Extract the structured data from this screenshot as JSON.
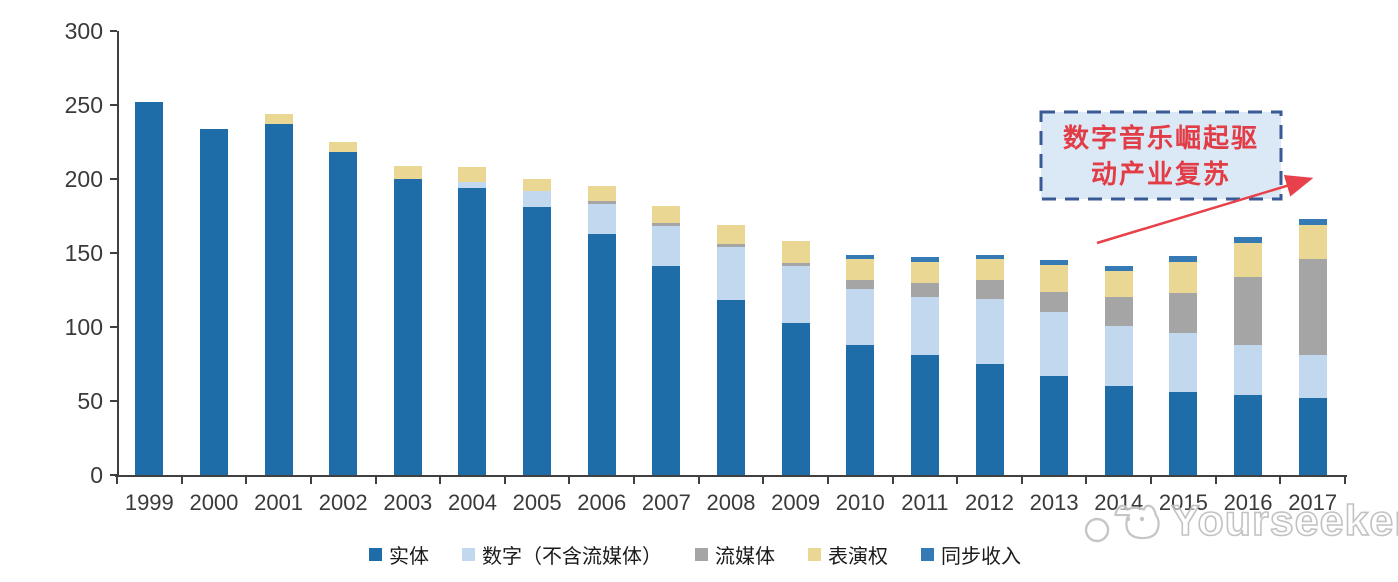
{
  "chart_data": {
    "type": "bar",
    "stacked": true,
    "title": "",
    "xlabel": "",
    "ylabel": "",
    "categories": [
      "1999",
      "2000",
      "2001",
      "2002",
      "2003",
      "2004",
      "2005",
      "2006",
      "2007",
      "2008",
      "2009",
      "2010",
      "2011",
      "2012",
      "2013",
      "2014",
      "2015",
      "2016",
      "2017"
    ],
    "series": [
      {
        "name": "实体",
        "color": "#1F6DA8",
        "values": [
          252,
          234,
          237,
          218,
          200,
          194,
          181,
          163,
          141,
          118,
          103,
          88,
          81,
          75,
          67,
          60,
          56,
          54,
          52
        ]
      },
      {
        "name": "数字（不含流媒体）",
        "color": "#C1D8EE",
        "values": [
          0,
          0,
          0,
          0,
          0,
          4,
          11,
          20,
          27,
          36,
          38,
          38,
          39,
          44,
          43,
          41,
          40,
          34,
          29
        ]
      },
      {
        "name": "流媒体",
        "color": "#A5A5A5",
        "values": [
          0,
          0,
          0,
          0,
          0,
          0,
          0,
          2,
          2,
          2,
          2,
          6,
          10,
          13,
          14,
          19,
          27,
          46,
          65
        ]
      },
      {
        "name": "表演权",
        "color": "#EAD793",
        "values": [
          0,
          0,
          7,
          7,
          9,
          10,
          8,
          10,
          12,
          13,
          15,
          14,
          14,
          14,
          18,
          18,
          21,
          23,
          23
        ]
      },
      {
        "name": "同步收入",
        "color": "#3579B5",
        "values": [
          0,
          0,
          0,
          0,
          0,
          0,
          0,
          0,
          0,
          0,
          0,
          3,
          3,
          3,
          3,
          3,
          4,
          4,
          4
        ]
      }
    ],
    "totals": [
      252,
      234,
      244,
      225,
      209,
      208,
      200,
      195,
      182,
      169,
      158,
      149,
      147,
      149,
      145,
      141,
      148,
      161,
      173
    ],
    "ylim": [
      0,
      300
    ],
    "yticks": [
      0,
      50,
      100,
      150,
      200,
      250,
      300
    ],
    "grid": false,
    "legend_position": "bottom",
    "axis_color": "#404040",
    "background_color": "#FFFFFF"
  },
  "annotation": {
    "text": "数字音乐崛起驱动产业复苏",
    "line1": "数字音乐崛起驱",
    "line2": "动产业复苏",
    "text_color": "#E23C46",
    "box_fill": "#DBE8F5",
    "box_border": "#3A5A96",
    "arrow_color": "#E8414B"
  },
  "watermark": {
    "text": "Yourseeker",
    "color": "#BFBFBF",
    "icon": "cat-logo-icon"
  }
}
